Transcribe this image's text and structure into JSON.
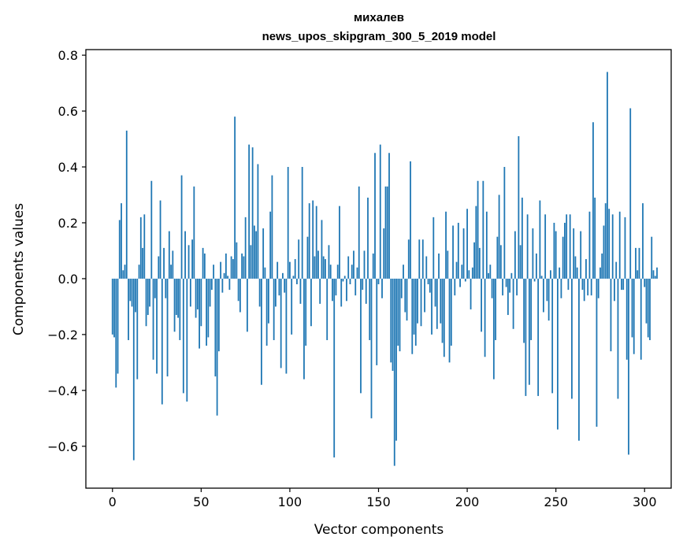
{
  "chart_data": {
    "type": "bar",
    "title": "михалев",
    "subtitle": "news_upos_skipgram_300_5_2019 model",
    "xlabel": "Vector components",
    "ylabel": "Components values",
    "xlim": [
      -15,
      315
    ],
    "ylim": [
      -0.75,
      0.82
    ],
    "xticks": [
      {
        "value": 0,
        "label": "0"
      },
      {
        "value": 50,
        "label": "50"
      },
      {
        "value": 100,
        "label": "100"
      },
      {
        "value": 150,
        "label": "150"
      },
      {
        "value": 200,
        "label": "200"
      },
      {
        "value": 250,
        "label": "250"
      },
      {
        "value": 300,
        "label": "300"
      }
    ],
    "yticks": [
      {
        "value": -0.6,
        "label": "−0.6"
      },
      {
        "value": -0.4,
        "label": "−0.4"
      },
      {
        "value": -0.2,
        "label": "−0.2"
      },
      {
        "value": 0.0,
        "label": "0.0"
      },
      {
        "value": 0.2,
        "label": "0.2"
      },
      {
        "value": 0.4,
        "label": "0.4"
      },
      {
        "value": 0.6,
        "label": "0.6"
      },
      {
        "value": 0.8,
        "label": "0.8"
      }
    ],
    "grid": false,
    "legend": "none",
    "bar_color": "#1f77b4",
    "values": [
      -0.2,
      -0.21,
      -0.39,
      -0.34,
      0.21,
      0.27,
      0.03,
      0.05,
      0.53,
      -0.22,
      -0.08,
      -0.1,
      -0.65,
      -0.12,
      -0.36,
      0.05,
      0.22,
      0.11,
      0.23,
      -0.17,
      -0.13,
      -0.1,
      0.35,
      -0.29,
      -0.07,
      -0.34,
      0.08,
      0.28,
      -0.45,
      0.11,
      -0.07,
      -0.35,
      0.17,
      0.05,
      0.1,
      -0.19,
      -0.13,
      -0.14,
      -0.22,
      0.37,
      -0.41,
      0.17,
      -0.44,
      0.12,
      -0.1,
      0.14,
      0.33,
      -0.14,
      -0.11,
      -0.25,
      -0.17,
      0.11,
      0.09,
      -0.24,
      -0.21,
      -0.1,
      -0.04,
      0.05,
      -0.35,
      -0.49,
      -0.26,
      0.06,
      -0.05,
      0.02,
      0.09,
      0.01,
      -0.04,
      0.08,
      0.07,
      0.58,
      0.13,
      -0.08,
      -0.12,
      0.09,
      0.08,
      0.22,
      -0.19,
      0.48,
      0.12,
      0.47,
      0.19,
      0.17,
      0.41,
      -0.1,
      -0.38,
      0.18,
      0.04,
      -0.24,
      -0.16,
      0.24,
      0.37,
      -0.22,
      -0.1,
      0.06,
      -0.06,
      -0.32,
      0.02,
      -0.05,
      -0.34,
      0.4,
      0.06,
      -0.2,
      0.01,
      0.07,
      -0.02,
      0.14,
      -0.09,
      0.4,
      -0.36,
      -0.24,
      0.15,
      0.27,
      -0.17,
      0.28,
      0.08,
      0.26,
      0.1,
      -0.09,
      0.21,
      0.08,
      0.07,
      -0.22,
      0.12,
      0.05,
      -0.08,
      -0.64,
      -0.06,
      0.05,
      0.26,
      -0.1,
      -0.01,
      0.01,
      -0.08,
      0.08,
      -0.02,
      0.05,
      0.1,
      -0.06,
      0.04,
      0.33,
      -0.41,
      -0.04,
      0.1,
      -0.09,
      0.29,
      -0.22,
      -0.5,
      0.09,
      0.45,
      -0.31,
      -0.02,
      0.48,
      -0.07,
      0.18,
      0.33,
      0.33,
      0.45,
      -0.3,
      -0.33,
      -0.67,
      -0.58,
      -0.24,
      -0.26,
      -0.07,
      0.05,
      -0.12,
      -0.15,
      0.14,
      0.42,
      -0.27,
      -0.2,
      -0.24,
      -0.16,
      0.14,
      -0.17,
      0.14,
      -0.12,
      0.08,
      -0.02,
      -0.05,
      -0.2,
      0.22,
      -0.1,
      -0.18,
      0.09,
      -0.16,
      -0.23,
      -0.28,
      0.24,
      0.1,
      -0.3,
      -0.24,
      0.19,
      -0.06,
      0.06,
      0.2,
      -0.03,
      0.05,
      0.18,
      -0.01,
      0.25,
      0.03,
      -0.11,
      0.04,
      0.13,
      0.26,
      0.35,
      0.11,
      -0.19,
      0.35,
      -0.28,
      0.24,
      0.02,
      0.05,
      -0.07,
      -0.36,
      -0.22,
      0.15,
      0.3,
      0.12,
      -0.06,
      0.4,
      -0.03,
      -0.13,
      -0.05,
      0.02,
      -0.18,
      0.17,
      -0.06,
      0.51,
      0.12,
      0.29,
      -0.23,
      -0.42,
      0.23,
      -0.38,
      -0.22,
      0.18,
      -0.01,
      0.09,
      -0.42,
      0.28,
      0.01,
      -0.12,
      0.23,
      -0.08,
      -0.15,
      0.03,
      -0.41,
      0.2,
      0.17,
      -0.54,
      0.04,
      -0.07,
      0.15,
      0.2,
      0.23,
      -0.04,
      0.23,
      -0.43,
      0.18,
      0.08,
      0.04,
      -0.58,
      0.17,
      -0.04,
      -0.08,
      0.07,
      -0.06,
      0.24,
      -0.06,
      0.56,
      0.29,
      -0.53,
      -0.07,
      0.04,
      0.09,
      0.19,
      0.27,
      0.74,
      0.25,
      -0.26,
      0.23,
      -0.08,
      0.06,
      -0.43,
      0.24,
      -0.04,
      -0.04,
      0.22,
      -0.29,
      -0.63,
      0.61,
      -0.21,
      -0.27,
      0.11,
      0.03,
      0.11,
      -0.29,
      0.27,
      -0.03,
      -0.16,
      -0.21,
      -0.22,
      0.15,
      0.03,
      0.01,
      0.04
    ]
  }
}
